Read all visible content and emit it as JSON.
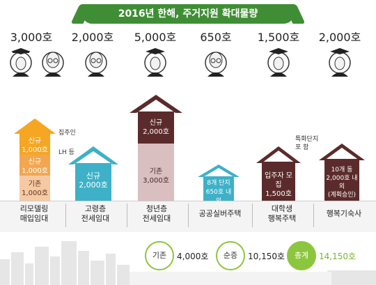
{
  "title": "2016년 한해, 주거지원 확대물량",
  "programs": [
    {
      "count": "3,000호",
      "label_line1": "리모델링",
      "label_line2": "매입임대"
    },
    {
      "count": "2,000호",
      "label_line1": "고령층",
      "label_line2": "전세임대"
    },
    {
      "count": "5,000호",
      "label_line1": "청년층",
      "label_line2": "전세임대"
    },
    {
      "count": "650호",
      "label_line1": "공공실버주택",
      "label_line2": ""
    },
    {
      "count": "1,500호",
      "label_line1": "대학생",
      "label_line2": "행복주택"
    },
    {
      "count": "2,000호",
      "label_line1": "행복기숙사",
      "label_line2": ""
    }
  ],
  "houses": {
    "remodel": {
      "new1_a": "신규",
      "new1_b": "1,000호",
      "new2_a": "신규",
      "new2_b": "1,000호",
      "base_a": "기존",
      "base_b": "1,000호"
    },
    "remodel_notes": {
      "owner": "집주인",
      "lh": "LH 등"
    },
    "elderly": {
      "a": "신규",
      "b": "2,000호"
    },
    "youth": {
      "new_a": "신규",
      "new_b": "2,000호",
      "base_a": "기존",
      "base_b": "3,000호"
    },
    "silver": {
      "a": "8개 단지",
      "b": "650호 내외"
    },
    "student": {
      "a": "입주자 모집",
      "b": "1,500호"
    },
    "student_note": {
      "a": "특화단지",
      "b": "포   함"
    },
    "dorm": {
      "a": "10개 동",
      "b": "2,000호 내외",
      "c": "(계획승인)"
    }
  },
  "totals": {
    "existing_label": "기존",
    "existing_value": "4,000호",
    "net_label": "순증",
    "net_value": "10,150호",
    "total_label": "총계",
    "total_value": "14,150호"
  },
  "colors": {
    "green": "#3f8e35",
    "orange": "#f5a623",
    "orange_dark": "#e8891c",
    "orange_light": "#f7c9a3",
    "teal": "#3eb1c8",
    "brown": "#5b2b2b",
    "brown_light": "#d9bfc0"
  }
}
